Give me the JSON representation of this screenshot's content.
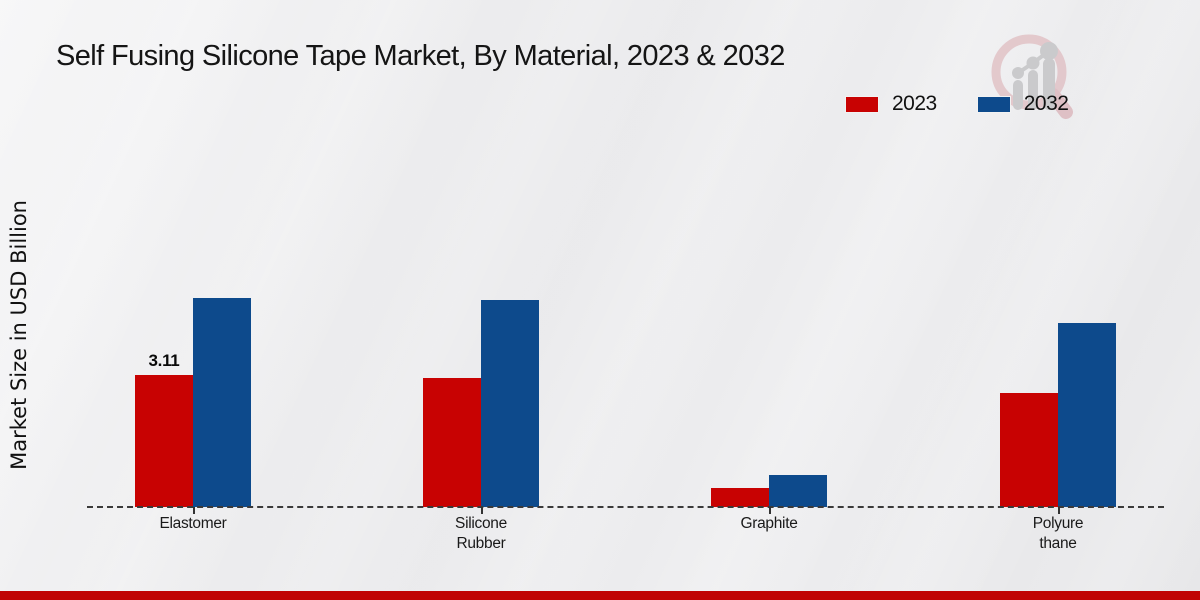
{
  "title": "Self Fusing Silicone Tape Market, By Material, 2023 & 2032",
  "ylabel": "Market Size in USD Billion",
  "legend": [
    {
      "label": "2023",
      "color": "#c80202"
    },
    {
      "label": "2032",
      "color": "#0d4a8c"
    }
  ],
  "footer_band_color": "#c00404",
  "watermark": {
    "name": "magnifier-bar-chart-logo",
    "ring_color": "#e2c5c9",
    "bars_color": "#c7c7c9"
  },
  "chart_data": {
    "type": "bar",
    "categories": [
      "Elastomer",
      "Silicone\nRubber",
      "Graphite",
      "Polyure\nthane"
    ],
    "series": [
      {
        "name": "2023",
        "color": "#c80202",
        "values": [
          3.11,
          3.04,
          0.45,
          2.69
        ]
      },
      {
        "name": "2032",
        "color": "#0d4a8c",
        "values": [
          4.92,
          4.88,
          0.75,
          4.34
        ]
      }
    ],
    "annotations": [
      {
        "series_index": 0,
        "category_index": 0,
        "text": "3.11"
      }
    ],
    "title": "Self Fusing Silicone Tape Market, By Material, 2023 & 2032",
    "xlabel": "",
    "ylabel": "Market Size in USD Billion",
    "ylim": [
      0,
      8.4
    ],
    "grid": false,
    "legend_position": "top-right",
    "baseline_style": "dashed",
    "units": "USD Billion"
  }
}
